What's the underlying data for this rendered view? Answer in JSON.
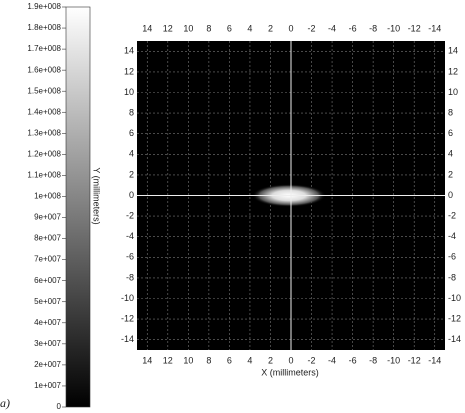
{
  "chart_data": {
    "type": "heatmap",
    "xlabel": "X (millimeters)",
    "ylabel": "Y (millimeters)",
    "panel_label": "a)",
    "xlim": [
      15,
      -15
    ],
    "ylim": [
      -15,
      15
    ],
    "xticks": [
      14,
      12,
      10,
      8,
      6,
      4,
      2,
      0,
      -2,
      -4,
      -6,
      -8,
      -10,
      -12,
      -14
    ],
    "yticks": [
      14,
      12,
      10,
      8,
      6,
      4,
      2,
      0,
      -2,
      -4,
      -6,
      -8,
      -10,
      -12,
      -14
    ],
    "grid": true,
    "spot": {
      "x": 0.2,
      "y": 0,
      "rx": 3.6,
      "ry": 1.1,
      "peak": 190000000
    },
    "clim": [
      0,
      190000000
    ],
    "cticks": [
      0,
      {
        "value": 10000000,
        "label": "1e+007"
      },
      {
        "value": 20000000,
        "label": "2e+007"
      },
      {
        "value": 30000000,
        "label": "3e+007"
      },
      {
        "value": 40000000,
        "label": "4e+007"
      },
      {
        "value": 50000000,
        "label": "5e+007"
      },
      {
        "value": 60000000,
        "label": "6e+007"
      },
      {
        "value": 70000000,
        "label": "7e+007"
      },
      {
        "value": 80000000,
        "label": "8e+007"
      },
      {
        "value": 90000000,
        "label": "9e+007"
      },
      {
        "value": 100000000,
        "label": "1e+008"
      },
      {
        "value": 110000000,
        "label": "1.1e+008"
      },
      {
        "value": 120000000,
        "label": "1.2e+008"
      },
      {
        "value": 130000000,
        "label": "1.3e+008"
      },
      {
        "value": 140000000,
        "label": "1.4e+008"
      },
      {
        "value": 150000000,
        "label": "1.5e+008"
      },
      {
        "value": 160000000,
        "label": "1.6e+008"
      },
      {
        "value": 170000000,
        "label": "1.7e+008"
      },
      {
        "value": 180000000,
        "label": "1.8e+008"
      },
      {
        "value": 190000000,
        "label": "1.9e+008"
      }
    ]
  }
}
